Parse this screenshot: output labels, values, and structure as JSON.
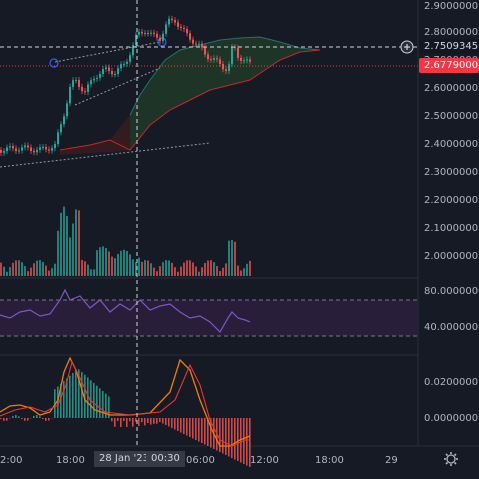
{
  "colors": {
    "background": "#161a25",
    "up": "#26a69a",
    "down": "#ef5350",
    "axis_text": "#b2b5be",
    "crosshair_label_bg": "#363a45",
    "current_price_bg": "#f23645",
    "crosshair_price_bg": "#131722",
    "rsi_line": "#7e57c2",
    "rsi_band": "#2a1f3d",
    "cloud_green": "#1e3a27",
    "cloud_red": "#3a1c1f",
    "macd_line": "#f57c00",
    "signal_line": "#e53935"
  },
  "price_axis": {
    "ticks": [
      "2.9000000",
      "2.8000000",
      "2.7000000",
      "2.6000000",
      "2.5000000",
      "2.4000000",
      "2.3000000",
      "2.2000000",
      "2.1000000",
      "2.0000000"
    ]
  },
  "badges": {
    "crosshair_price": "2.7509345",
    "current_price": "2.6779000",
    "plus_icon": "plus-circle-icon"
  },
  "rsi_axis": {
    "ticks": [
      "80.0000000",
      "40.0000000"
    ]
  },
  "macd_axis": {
    "ticks": [
      "0.0200000",
      "0.0000000"
    ]
  },
  "time_axis": {
    "ticks": [
      "2:00",
      "18:00",
      "00:30",
      "06:00",
      "12:00",
      "18:00",
      "29"
    ],
    "crosshair_date": "28 Jan '23",
    "crosshair_time": "00:30",
    "settings_icon": "gear-icon"
  },
  "chart_data": {
    "type": "candlestick",
    "ylim": [
      2.3,
      2.9
    ],
    "grid": false,
    "crosshair": {
      "price": 2.7509345,
      "time": "00:30"
    },
    "last_price": 2.6779,
    "rsi": {
      "levels": [
        80,
        40
      ]
    },
    "macd": {
      "levels": [
        0.02,
        0.0
      ]
    }
  }
}
